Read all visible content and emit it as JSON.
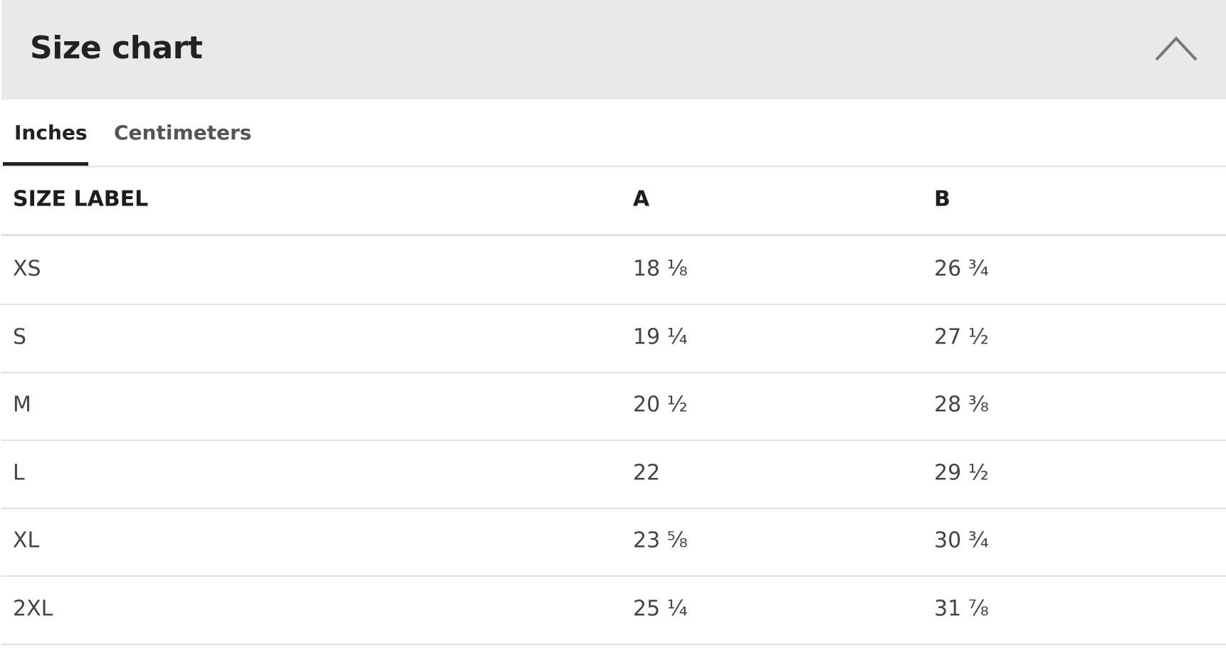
{
  "header": {
    "title": "Size chart"
  },
  "tabs": [
    "Inches",
    "Centimeters"
  ],
  "table": {
    "columns": [
      "SIZE LABEL",
      "A",
      "B"
    ],
    "rows": [
      [
        "XS",
        "18 ⅛",
        "26 ¾"
      ],
      [
        "S",
        "19 ¼",
        "27 ½"
      ],
      [
        "M",
        "20 ½",
        "28 ⅜"
      ],
      [
        "L",
        "22",
        "29 ½"
      ],
      [
        "XL",
        "23 ⅝",
        "30 ¾"
      ],
      [
        "2XL",
        "25 ¼",
        "31 ⅞"
      ]
    ]
  }
}
